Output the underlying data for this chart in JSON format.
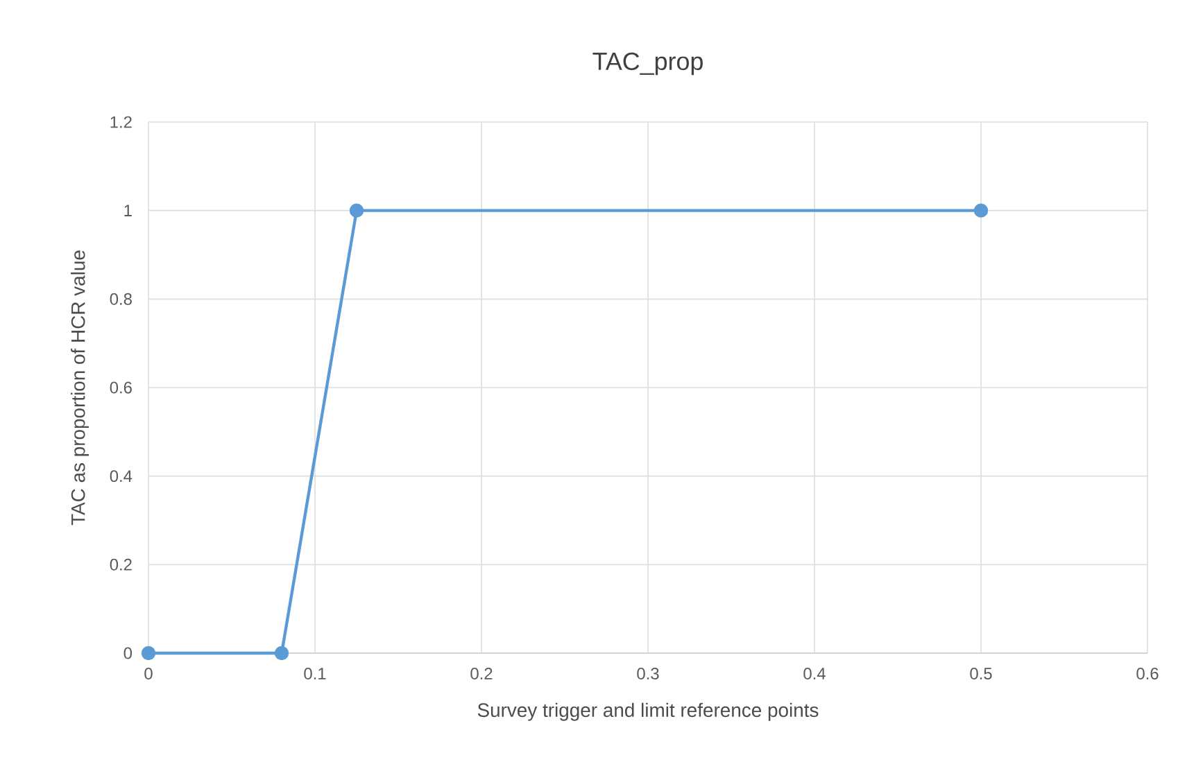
{
  "chart_data": {
    "type": "line",
    "title": "TAC_prop",
    "xlabel": "Survey trigger and limit reference points",
    "ylabel": "TAC as proportion of HCR value",
    "x": [
      0,
      0.08,
      0.125,
      0.5
    ],
    "series": [
      {
        "color": "#5b9bd5",
        "values": [
          0,
          0,
          1,
          1
        ]
      }
    ],
    "xlim": [
      0,
      0.6
    ],
    "xticks": [
      0,
      0.1,
      0.2,
      0.3,
      0.4,
      0.5,
      0.6
    ],
    "ylim": [
      0,
      1.2
    ],
    "yticks": [
      0,
      0.2,
      0.4,
      0.6,
      0.8,
      1,
      1.2
    ],
    "grid": true,
    "marker": "circle",
    "line_style": "solid"
  }
}
